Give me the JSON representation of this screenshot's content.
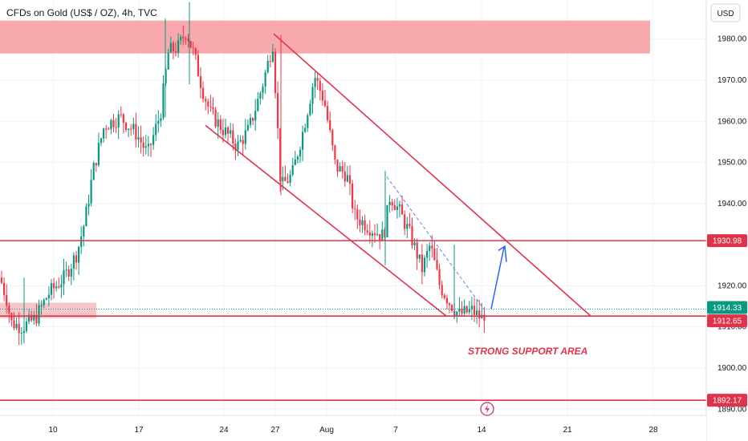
{
  "chart_data": {
    "type": "candlestick",
    "title": "CFDs on Gold (US$ / OZ), 4h, TVC",
    "currency_label": "USD",
    "y_axis": {
      "position": "right",
      "range": [
        1888.5,
        1989.5
      ],
      "ticks": [
        "1980.00",
        "1970.00",
        "1960.00",
        "1950.00",
        "1940.00",
        "1920.00",
        "1910.00",
        "1900.00",
        "1890.00"
      ]
    },
    "x_axis": {
      "tick_labels": [
        "10",
        "17",
        "24",
        "27",
        "Aug",
        "7",
        "14",
        "21",
        "28"
      ]
    },
    "price_levels": [
      {
        "value": 1930.98,
        "label": "1930.98",
        "color": "#e0334a"
      },
      {
        "value": 1914.33,
        "label": "1914.33",
        "color": "#089981",
        "style": "dotted"
      },
      {
        "value": 1912.65,
        "label": "1912.65",
        "color": "#e0334a"
      },
      {
        "value": 1892.17,
        "label": "1892.17",
        "color": "#e0334a"
      }
    ],
    "zones": [
      {
        "name": "resistance-zone",
        "from": 1976.5,
        "to": 1984.5,
        "color": "#f7a4a9"
      },
      {
        "name": "support-zone",
        "from": 1912.5,
        "to": 1915.5,
        "color": "#f7c3c7"
      }
    ],
    "annotations": [
      {
        "text": "STRONG SUPPORT AREA",
        "color": "#e0334a"
      }
    ],
    "colors": {
      "up": "#089981",
      "down": "#f23645",
      "line": "#e0334a",
      "projection": "#2962ff"
    }
  }
}
